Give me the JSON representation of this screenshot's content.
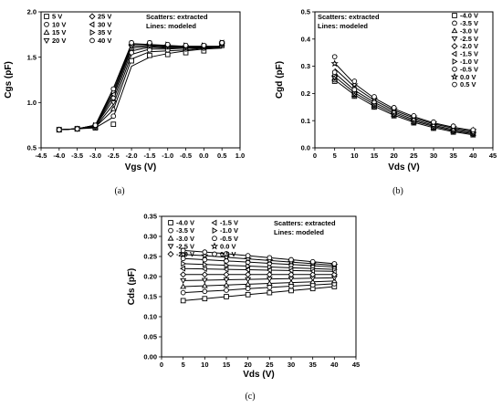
{
  "chart_data": [
    {
      "type": "scatter",
      "panel": "a",
      "caption": "(a)",
      "xlabel": "Vgs (V)",
      "ylabel": "Cgs (pF)",
      "xlim": [
        -4.5,
        1.0
      ],
      "ylim": [
        0.5,
        2.0
      ],
      "x_ticks": [
        "-4.5",
        "-4.0",
        "-3.5",
        "-3.0",
        "-2.5",
        "-2.0",
        "-1.5",
        "-1.0",
        "-0.5",
        "0.0",
        "0.5",
        "1.0"
      ],
      "y_ticks": [
        "0.5",
        "1.0",
        "1.5",
        "2.0"
      ],
      "annotations": [
        "Scatters: extracted",
        "Lines: modeled"
      ],
      "legend_columns": 2,
      "x": [
        -4.0,
        -3.5,
        -3.0,
        -2.5,
        -2.0,
        -1.5,
        -1.0,
        -0.5,
        0.0,
        0.5
      ],
      "series": [
        {
          "name": "5 V",
          "marker": "square",
          "values": [
            0.7,
            0.71,
            0.72,
            0.76,
            1.46,
            1.52,
            1.53,
            1.55,
            1.57,
            1.63
          ]
        },
        {
          "name": "10 V",
          "marker": "circle",
          "values": [
            0.7,
            0.71,
            0.73,
            0.85,
            1.55,
            1.58,
            1.58,
            1.59,
            1.6,
            1.64
          ]
        },
        {
          "name": "15 V",
          "marker": "triangle",
          "values": [
            0.7,
            0.71,
            0.73,
            0.93,
            1.6,
            1.62,
            1.61,
            1.6,
            1.61,
            1.65
          ]
        },
        {
          "name": "20 V",
          "marker": "triangle-down",
          "values": [
            0.7,
            0.71,
            0.74,
            1.0,
            1.62,
            1.63,
            1.62,
            1.61,
            1.62,
            1.65
          ]
        },
        {
          "name": "25 V",
          "marker": "diamond",
          "values": [
            0.7,
            0.71,
            0.74,
            1.05,
            1.63,
            1.64,
            1.63,
            1.62,
            1.62,
            1.65
          ]
        },
        {
          "name": "30 V",
          "marker": "triangle-left",
          "values": [
            0.7,
            0.71,
            0.75,
            1.09,
            1.64,
            1.65,
            1.63,
            1.62,
            1.62,
            1.66
          ]
        },
        {
          "name": "35 V",
          "marker": "triangle-right",
          "values": [
            0.7,
            0.71,
            0.75,
            1.12,
            1.65,
            1.65,
            1.64,
            1.63,
            1.63,
            1.66
          ]
        },
        {
          "name": "40 V",
          "marker": "circle",
          "values": [
            0.7,
            0.71,
            0.75,
            1.15,
            1.66,
            1.66,
            1.64,
            1.63,
            1.63,
            1.66
          ]
        }
      ],
      "model_lines": [
        [
          0.7,
          0.71,
          0.72,
          0.84,
          1.4,
          1.5,
          1.54,
          1.57,
          1.59,
          1.6
        ],
        [
          0.7,
          0.71,
          0.73,
          0.92,
          1.48,
          1.56,
          1.57,
          1.58,
          1.6,
          1.61
        ],
        [
          0.7,
          0.71,
          0.73,
          0.98,
          1.53,
          1.59,
          1.59,
          1.6,
          1.6,
          1.61
        ],
        [
          0.7,
          0.71,
          0.74,
          1.03,
          1.57,
          1.61,
          1.6,
          1.6,
          1.61,
          1.62
        ],
        [
          0.7,
          0.71,
          0.74,
          1.07,
          1.6,
          1.62,
          1.61,
          1.61,
          1.61,
          1.62
        ],
        [
          0.7,
          0.71,
          0.75,
          1.1,
          1.62,
          1.63,
          1.62,
          1.61,
          1.61,
          1.62
        ],
        [
          0.7,
          0.71,
          0.75,
          1.13,
          1.64,
          1.64,
          1.62,
          1.62,
          1.62,
          1.62
        ],
        [
          0.7,
          0.71,
          0.75,
          1.16,
          1.65,
          1.64,
          1.63,
          1.62,
          1.62,
          1.62
        ]
      ]
    },
    {
      "type": "scatter",
      "panel": "b",
      "caption": "(b)",
      "xlabel": "Vds (V)",
      "ylabel": "Cgd (pF)",
      "xlim": [
        0,
        45
      ],
      "ylim": [
        0.0,
        0.5
      ],
      "x_ticks": [
        "0",
        "5",
        "10",
        "15",
        "20",
        "25",
        "30",
        "35",
        "40",
        "45"
      ],
      "y_ticks": [
        "0.0",
        "0.1",
        "0.2",
        "0.3",
        "0.4",
        "0.5"
      ],
      "annotations": [
        "Scatters: extracted",
        "Lines: modeled"
      ],
      "legend_columns": 1,
      "x": [
        5,
        10,
        15,
        20,
        25,
        30,
        35,
        40
      ],
      "series": [
        {
          "name": "-4.0 V",
          "marker": "square",
          "values": [
            0.245,
            0.19,
            0.15,
            0.118,
            0.092,
            0.072,
            0.058,
            0.048
          ]
        },
        {
          "name": "-3.5 V",
          "marker": "circle",
          "values": [
            0.25,
            0.193,
            0.152,
            0.12,
            0.094,
            0.074,
            0.06,
            0.05
          ]
        },
        {
          "name": "-3.0 V",
          "marker": "triangle",
          "values": [
            0.255,
            0.196,
            0.155,
            0.122,
            0.096,
            0.076,
            0.062,
            0.052
          ]
        },
        {
          "name": "-2.5 V",
          "marker": "triangle-down",
          "values": [
            0.258,
            0.199,
            0.157,
            0.124,
            0.098,
            0.078,
            0.063,
            0.053
          ]
        },
        {
          "name": "-2.0 V",
          "marker": "diamond",
          "values": [
            0.262,
            0.202,
            0.16,
            0.126,
            0.1,
            0.08,
            0.065,
            0.055
          ]
        },
        {
          "name": "-1.5 V",
          "marker": "triangle-left",
          "values": [
            0.266,
            0.205,
            0.162,
            0.128,
            0.102,
            0.082,
            0.066,
            0.056
          ]
        },
        {
          "name": "-1.0 V",
          "marker": "triangle-right",
          "values": [
            0.27,
            0.208,
            0.165,
            0.131,
            0.104,
            0.084,
            0.068,
            0.058
          ]
        },
        {
          "name": "-0.5 V",
          "marker": "circle",
          "values": [
            0.278,
            0.214,
            0.17,
            0.135,
            0.108,
            0.087,
            0.071,
            0.06
          ]
        },
        {
          "name": "0.0 V",
          "marker": "star",
          "values": [
            0.31,
            0.232,
            0.18,
            0.142,
            0.114,
            0.092,
            0.076,
            0.064
          ]
        },
        {
          "name": "0.5 V",
          "marker": "circle",
          "values": [
            0.335,
            0.245,
            0.188,
            0.148,
            0.118,
            0.095,
            0.08,
            0.066
          ]
        }
      ],
      "model_lines": [
        [
          0.25,
          0.195,
          0.153,
          0.12,
          0.094,
          0.074,
          0.059,
          0.048
        ],
        [
          0.262,
          0.203,
          0.16,
          0.126,
          0.099,
          0.079,
          0.063,
          0.052
        ],
        [
          0.275,
          0.212,
          0.167,
          0.132,
          0.104,
          0.083,
          0.067,
          0.056
        ],
        [
          0.292,
          0.224,
          0.175,
          0.138,
          0.11,
          0.088,
          0.072,
          0.06
        ],
        [
          0.312,
          0.236,
          0.183,
          0.144,
          0.115,
          0.092,
          0.076,
          0.064
        ]
      ]
    },
    {
      "type": "scatter",
      "panel": "c",
      "caption": "(c)",
      "xlabel": "Vds (V)",
      "ylabel": "Cds (pF)",
      "xlim": [
        0,
        45
      ],
      "ylim": [
        0.0,
        0.35
      ],
      "x_ticks": [
        "0",
        "5",
        "10",
        "15",
        "20",
        "25",
        "30",
        "35",
        "40",
        "45"
      ],
      "y_ticks": [
        "0.00",
        "0.05",
        "0.10",
        "0.15",
        "0.20",
        "0.25",
        "0.30",
        "0.35"
      ],
      "annotations": [
        "Scatters: extracted",
        "Lines: modeled"
      ],
      "legend_columns": 2,
      "x": [
        5,
        10,
        15,
        20,
        25,
        30,
        35,
        40
      ],
      "series": [
        {
          "name": "-4.0 V",
          "marker": "square",
          "values": [
            0.14,
            0.145,
            0.15,
            0.155,
            0.16,
            0.165,
            0.17,
            0.175
          ]
        },
        {
          "name": "-3.5 V",
          "marker": "circle",
          "values": [
            0.16,
            0.163,
            0.166,
            0.17,
            0.173,
            0.176,
            0.179,
            0.182
          ]
        },
        {
          "name": "-3.0 V",
          "marker": "triangle",
          "values": [
            0.175,
            0.177,
            0.179,
            0.181,
            0.183,
            0.185,
            0.187,
            0.189
          ]
        },
        {
          "name": "-2.5 V",
          "marker": "triangle-down",
          "values": [
            0.19,
            0.191,
            0.192,
            0.193,
            0.194,
            0.195,
            0.196,
            0.197
          ]
        },
        {
          "name": "-2.0 V",
          "marker": "diamond",
          "values": [
            0.205,
            0.205,
            0.205,
            0.205,
            0.205,
            0.205,
            0.205,
            0.205
          ]
        },
        {
          "name": "-1.5 V",
          "marker": "triangle-left",
          "values": [
            0.22,
            0.219,
            0.218,
            0.217,
            0.216,
            0.215,
            0.214,
            0.213
          ]
        },
        {
          "name": "-1.0 V",
          "marker": "triangle-right",
          "values": [
            0.232,
            0.23,
            0.228,
            0.226,
            0.224,
            0.222,
            0.22,
            0.218
          ]
        },
        {
          "name": "-0.5 V",
          "marker": "circle",
          "values": [
            0.245,
            0.242,
            0.239,
            0.236,
            0.233,
            0.23,
            0.227,
            0.224
          ]
        },
        {
          "name": "0.0 V",
          "marker": "star",
          "values": [
            0.255,
            0.252,
            0.248,
            0.244,
            0.24,
            0.236,
            0.232,
            0.228
          ]
        },
        {
          "name": "0.5 V",
          "marker": "circle",
          "values": [
            0.265,
            0.261,
            0.257,
            0.252,
            0.247,
            0.242,
            0.237,
            0.232
          ]
        }
      ]
    }
  ]
}
